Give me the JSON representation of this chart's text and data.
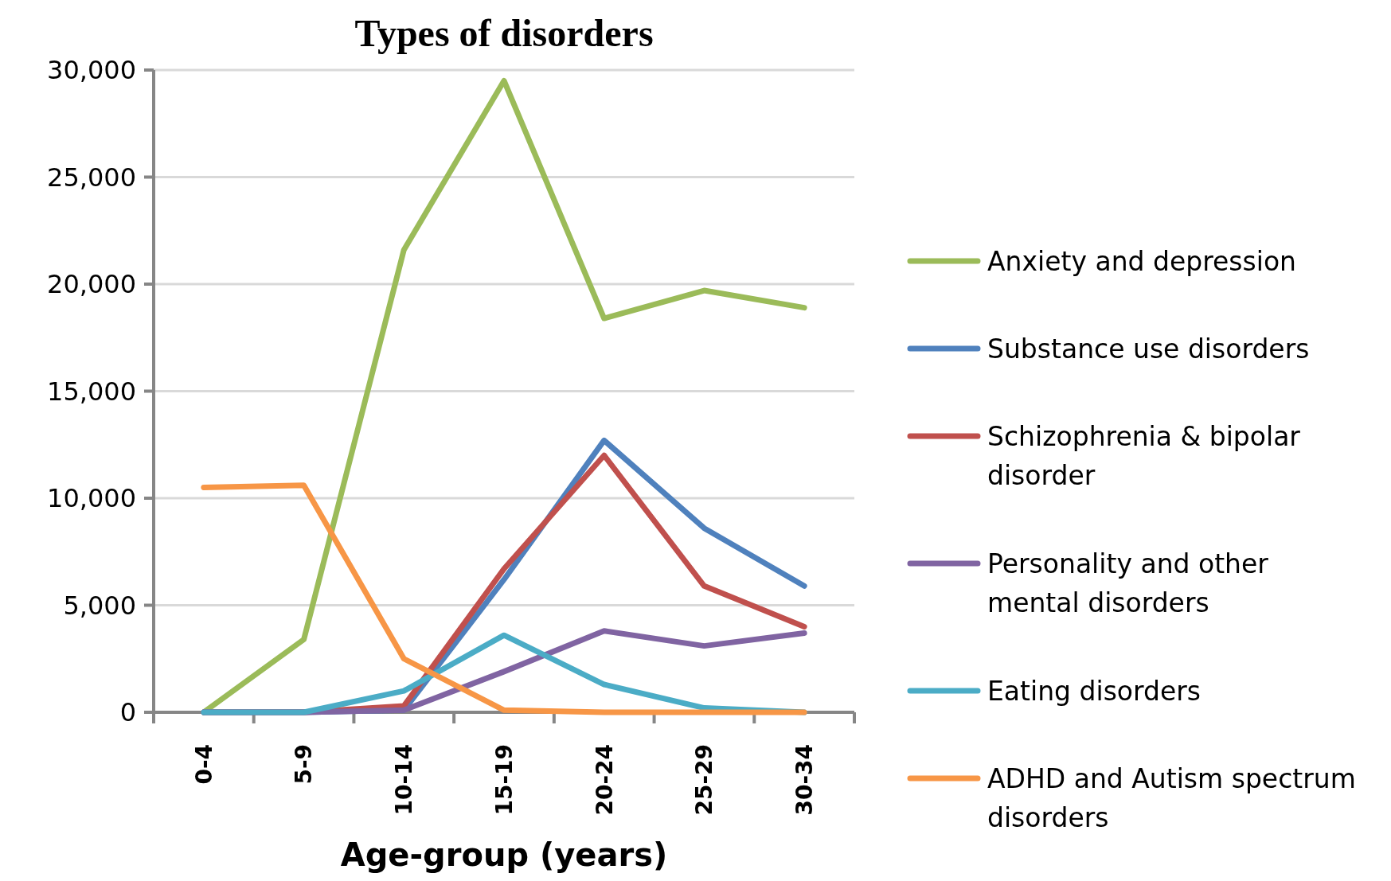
{
  "chart_data": {
    "type": "line",
    "title": "Types of disorders",
    "xlabel": "Age-group (years)",
    "categories": [
      "0-4",
      "5-9",
      "10-14",
      "15-19",
      "20-24",
      "25-29",
      "30-34"
    ],
    "ylim": [
      0,
      30000
    ],
    "yticks": [
      {
        "value": 0,
        "label": "0"
      },
      {
        "value": 5000,
        "label": "5,000"
      },
      {
        "value": 10000,
        "label": "10,000"
      },
      {
        "value": 15000,
        "label": "15,000"
      },
      {
        "value": 20000,
        "label": "20,000"
      },
      {
        "value": 25000,
        "label": "25,000"
      },
      {
        "value": 30000,
        "label": "30,000"
      }
    ],
    "grid": "y",
    "legend": "right",
    "marker": "none",
    "line_style": "solid",
    "series": [
      {
        "name": "Anxiety and depression",
        "color": "#9bbb59",
        "values": [
          0,
          3400,
          21600,
          29500,
          18400,
          19700,
          18900
        ]
      },
      {
        "name": "Substance use disorders",
        "color": "#4f81bd",
        "values": [
          0,
          0,
          100,
          6200,
          12700,
          8600,
          5900
        ]
      },
      {
        "name": "Schizophrenia & bipolar disorder",
        "color": "#c0504d",
        "values": [
          0,
          0,
          300,
          6700,
          12000,
          5900,
          4000
        ]
      },
      {
        "name": "Personality and other mental disorders",
        "color": "#8064a2",
        "values": [
          0,
          0,
          100,
          1900,
          3800,
          3100,
          3700
        ]
      },
      {
        "name": "Eating disorders",
        "color": "#4bacc6",
        "values": [
          0,
          0,
          1000,
          3600,
          1300,
          200,
          0
        ]
      },
      {
        "name": "ADHD and Autism spectrum disorders",
        "color": "#f79646",
        "values": [
          10500,
          10600,
          2500,
          100,
          0,
          0,
          0
        ]
      }
    ]
  }
}
